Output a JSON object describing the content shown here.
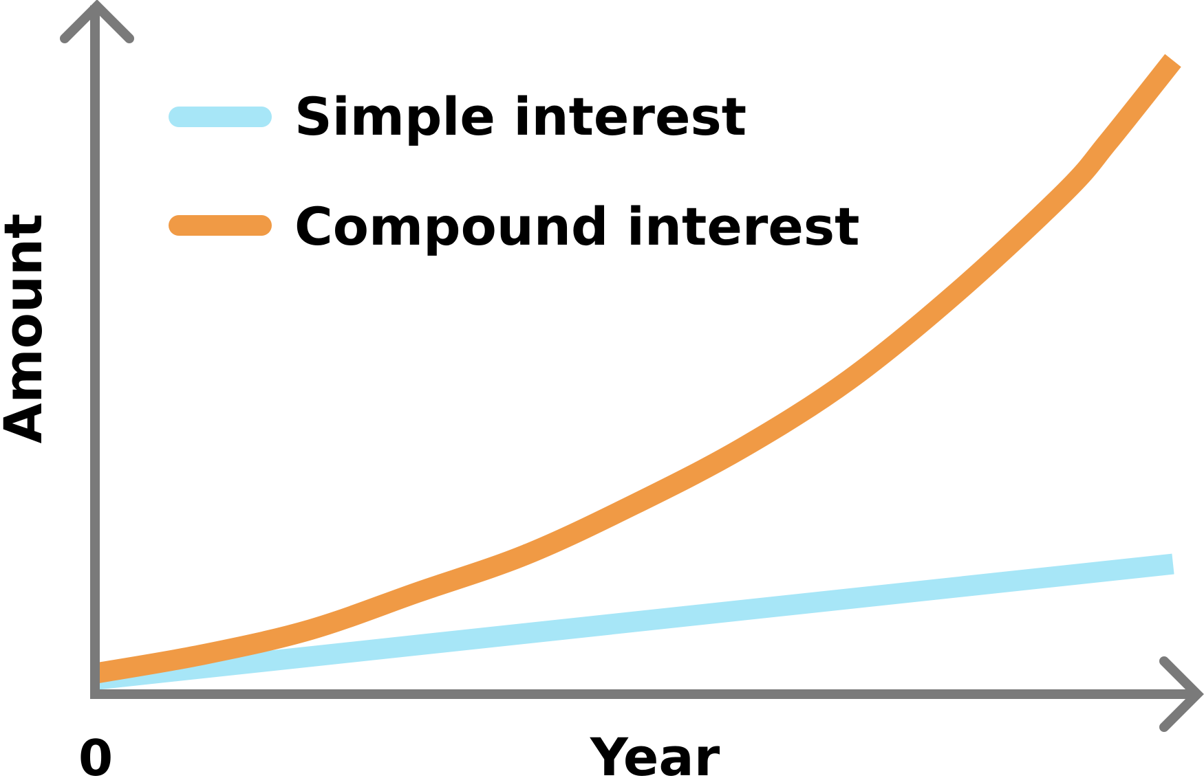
{
  "chart_data": {
    "type": "line",
    "title": "",
    "xlabel": "Year",
    "ylabel": "Amount",
    "x_tick_labels": [
      {
        "x": 0,
        "label": "0"
      }
    ],
    "xlim": [
      0,
      10
    ],
    "ylim": [
      0,
      10
    ],
    "grid": false,
    "legend_position": "top-left",
    "series": [
      {
        "name": "Simple interest",
        "color": "#a7e6f7",
        "x": [
          0,
          10
        ],
        "y": [
          0.1,
          1.95
        ]
      },
      {
        "name": "Compound interest",
        "color": "#f09a45",
        "x": [
          0,
          1,
          2,
          3,
          4,
          5,
          6,
          7,
          8,
          9,
          9.4,
          10
        ],
        "y": [
          0.2,
          0.5,
          0.9,
          1.5,
          2.1,
          2.9,
          3.8,
          4.9,
          6.3,
          7.9,
          8.7,
          10
        ]
      }
    ],
    "axis_color": "#7a7a7a"
  }
}
